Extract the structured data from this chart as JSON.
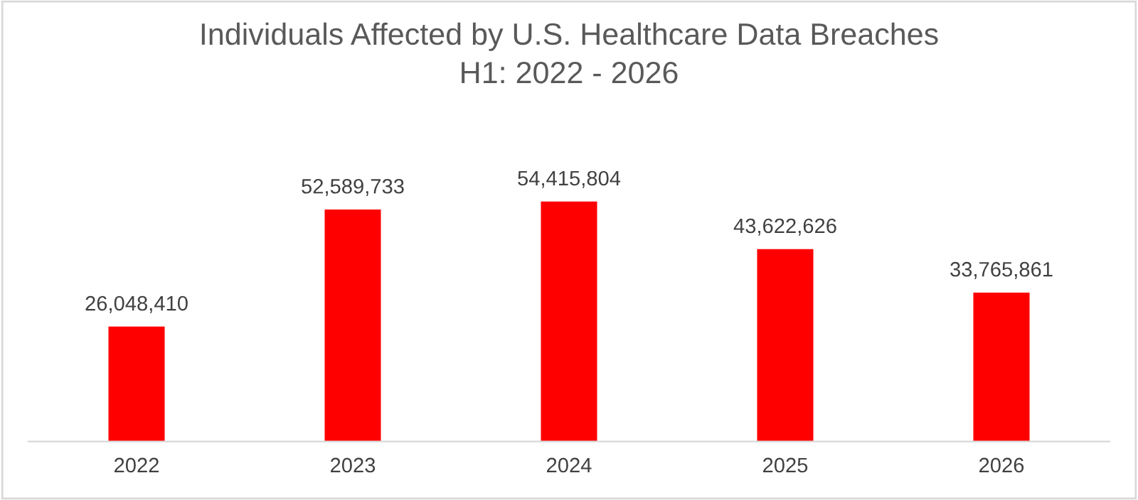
{
  "chart_data": {
    "type": "bar",
    "title": "Individuals Affected by U.S. Healthcare Data Breaches\nH1: 2022 - 2026",
    "categories": [
      "2022",
      "2023",
      "2024",
      "2025",
      "2026"
    ],
    "values": [
      26048410,
      52589733,
      54415804,
      43622626,
      33765861
    ],
    "value_labels": [
      "26,048,410",
      "52,589,733",
      "54,415,804",
      "43,622,626",
      "33,765,861"
    ],
    "color": "#ff0000"
  }
}
